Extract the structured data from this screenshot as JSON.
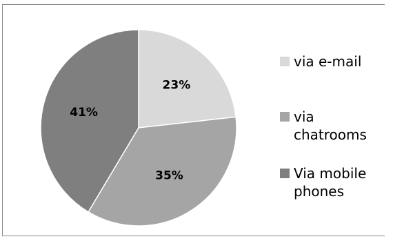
{
  "chart_data": {
    "type": "pie",
    "title": "",
    "categories": [
      "via e-mail",
      "via chatrooms",
      "Via mobile phones"
    ],
    "values": [
      23,
      35,
      41
    ],
    "data_labels": [
      "23%",
      "35%",
      "41%"
    ],
    "colors": [
      "#d9d9d9",
      "#a5a5a5",
      "#7f7f7f"
    ],
    "start_angle": "12 o'clock, clockwise",
    "legend": {
      "position": "right",
      "entries": [
        {
          "label": "via e-mail",
          "color": "#d9d9d9"
        },
        {
          "label": "via\nchatrooms",
          "color": "#a5a5a5"
        },
        {
          "label": "Via mobile\nphones",
          "color": "#7f7f7f"
        }
      ]
    }
  }
}
